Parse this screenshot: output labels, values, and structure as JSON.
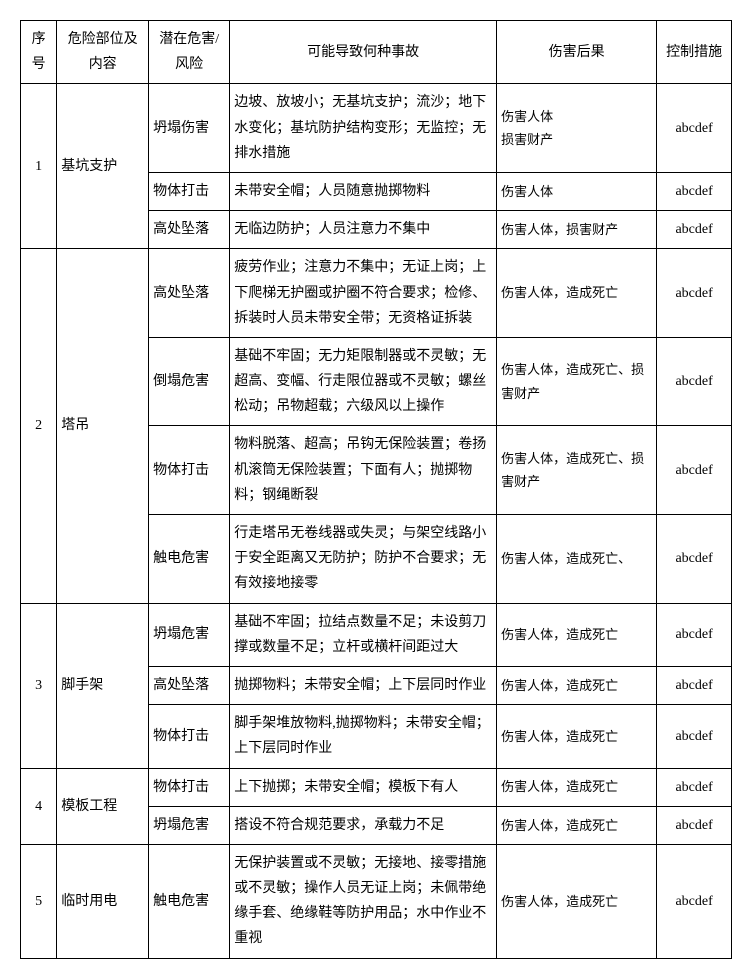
{
  "headers": {
    "seq": "序号",
    "part": "危险部位及内容",
    "hazard": "潜在危害/风险",
    "accident": "可能导致何种事故",
    "consequence": "伤害后果",
    "control": "控制措施"
  },
  "groups": [
    {
      "seq": "1",
      "part": "基坑支护",
      "rows": [
        {
          "hazard": "坍塌伤害",
          "accident": "边坡、放坡小；无基坑支护；流沙；地下水变化；基坑防护结构变形；无监控；无排水措施",
          "consequence": "伤害人体\n损害财产",
          "control": "abcdef"
        },
        {
          "hazard": "物体打击",
          "accident": "未带安全帽；人员随意抛掷物料",
          "consequence": "伤害人体",
          "control": "abcdef"
        },
        {
          "hazard": "高处坠落",
          "accident": "无临边防护；人员注意力不集中",
          "consequence": "伤害人体，损害财产",
          "control": "abcdef"
        }
      ]
    },
    {
      "seq": "2",
      "part": "塔吊",
      "rows": [
        {
          "hazard": "高处坠落",
          "accident": "疲劳作业；注意力不集中；无证上岗；上下爬梯无护圈或护圈不符合要求；检修、拆装时人员未带安全带；无资格证拆装",
          "consequence": "伤害人体，造成死亡",
          "control": "abcdef"
        },
        {
          "hazard": "倒塌危害",
          "accident": "基础不牢固；无力矩限制器或不灵敏；无超高、变幅、行走限位器或不灵敏；螺丝松动；吊物超载；六级风以上操作",
          "consequence": "伤害人体，造成死亡、损害财产",
          "control": "abcdef"
        },
        {
          "hazard": "物体打击",
          "accident": "物料脱落、超高；吊钩无保险装置；卷扬机滚筒无保险装置；下面有人；抛掷物料；钢绳断裂",
          "consequence": "伤害人体，造成死亡、损害财产",
          "control": "abcdef"
        },
        {
          "hazard": "触电危害",
          "accident": "行走塔吊无卷线器或失灵；与架空线路小于安全距离又无防护；防护不合要求；无有效接地接零",
          "consequence": "伤害人体，造成死亡、",
          "control": "abcdef"
        }
      ]
    },
    {
      "seq": "3",
      "part": "脚手架",
      "rows": [
        {
          "hazard": "坍塌危害",
          "accident": "基础不牢固；拉结点数量不足；未设剪刀撑或数量不足；立杆或横杆间距过大",
          "consequence": "伤害人体，造成死亡",
          "control": "abcdef"
        },
        {
          "hazard": "高处坠落",
          "accident": "抛掷物料；未带安全帽；上下层同时作业",
          "consequence": "伤害人体，造成死亡",
          "control": "abcdef"
        },
        {
          "hazard": "物体打击",
          "accident": "脚手架堆放物料,抛掷物料；未带安全帽；上下层同时作业",
          "consequence": "伤害人体，造成死亡",
          "control": "abcdef"
        }
      ]
    },
    {
      "seq": "4",
      "part": "模板工程",
      "rows": [
        {
          "hazard": "物体打击",
          "accident": "上下抛掷；未带安全帽；模板下有人",
          "consequence": "伤害人体，造成死亡",
          "control": "abcdef"
        },
        {
          "hazard": "坍塌危害",
          "accident": "搭设不符合规范要求，承载力不足",
          "consequence": "伤害人体，造成死亡",
          "control": "abcdef"
        }
      ]
    },
    {
      "seq": "5",
      "part": "临时用电",
      "rows": [
        {
          "hazard": "触电危害",
          "accident": "无保护装置或不灵敏；无接地、接零措施或不灵敏；操作人员无证上岗；未佩带绝缘手套、绝缘鞋等防护用品；水中作业不重视",
          "consequence": "伤害人体，造成死亡",
          "control": "abcdef"
        }
      ]
    }
  ]
}
